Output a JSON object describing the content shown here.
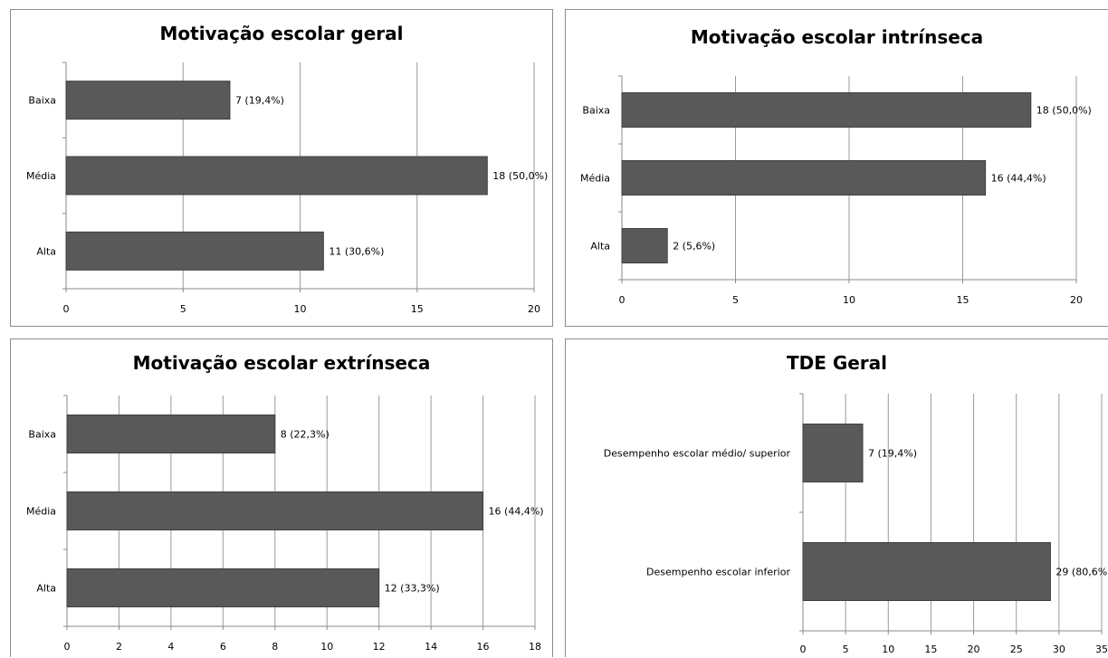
{
  "chart_data": [
    {
      "type": "bar",
      "orientation": "horizontal",
      "title": "Motivação escolar geral",
      "categories": [
        "Baixa",
        "Média",
        "Alta"
      ],
      "values": [
        7,
        18,
        11
      ],
      "data_labels": [
        "7 (19,4%)",
        "18 (50,0%)",
        "11 (30,6%)"
      ],
      "xlim": [
        0,
        20
      ],
      "x_ticks": [
        0,
        5,
        10,
        15,
        20
      ],
      "x_tick_labels": [
        "0",
        "5",
        "10",
        "15",
        "20"
      ],
      "grid": true,
      "bar_color": "#595959"
    },
    {
      "type": "bar",
      "orientation": "horizontal",
      "title": "Motivação escolar intrínseca",
      "categories": [
        "Baixa",
        "Média",
        "Alta"
      ],
      "values": [
        18,
        16,
        2
      ],
      "data_labels": [
        "18 (50,0%)",
        "16 (44,4%)",
        "2 (5,6%)"
      ],
      "xlim": [
        0,
        20
      ],
      "x_ticks": [
        0,
        5,
        10,
        15,
        20
      ],
      "x_tick_labels": [
        "0",
        "5",
        "10",
        "15",
        "20"
      ],
      "grid": true,
      "bar_color": "#595959"
    },
    {
      "type": "bar",
      "orientation": "horizontal",
      "title": "Motivação escolar extrínseca",
      "categories": [
        "Baixa",
        "Média",
        "Alta"
      ],
      "values": [
        8,
        16,
        12
      ],
      "data_labels": [
        "8 (22,3%)",
        "16 (44,4%)",
        "12 (33,3%)"
      ],
      "xlim": [
        0,
        18
      ],
      "x_ticks": [
        0,
        2,
        4,
        6,
        8,
        10,
        12,
        14,
        16,
        18
      ],
      "x_tick_labels": [
        "0",
        "2",
        "4",
        "6",
        "8",
        "10",
        "12",
        "14",
        "16",
        "18"
      ],
      "grid": true,
      "bar_color": "#595959"
    },
    {
      "type": "bar",
      "orientation": "horizontal",
      "title": "TDE Geral",
      "categories": [
        "Desempenho escolar médio/ superior",
        "Desempenho escolar inferior"
      ],
      "values": [
        7,
        29
      ],
      "data_labels": [
        "7 (19,4%)",
        "29 (80,6%"
      ],
      "xlim": [
        0,
        35
      ],
      "x_ticks": [
        0,
        5,
        10,
        15,
        20,
        25,
        30,
        35
      ],
      "x_tick_labels": [
        "0",
        "5",
        "10",
        "15",
        "20",
        "25",
        "30",
        "35"
      ],
      "grid": true,
      "bar_color": "#595959"
    }
  ]
}
